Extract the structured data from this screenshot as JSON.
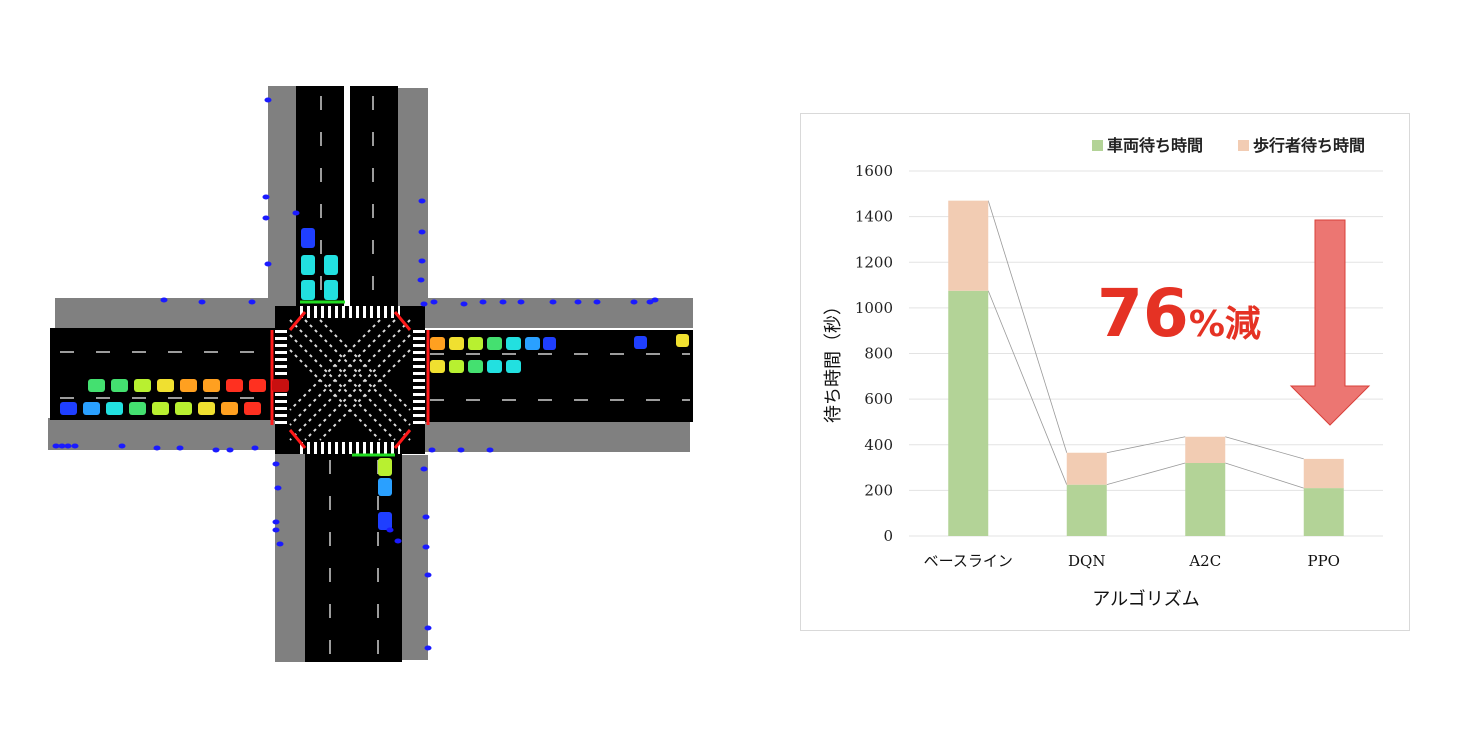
{
  "chart_data": {
    "type": "bar",
    "stacked": true,
    "categories": [
      "ベースライン",
      "DQN",
      "A2C",
      "PPO"
    ],
    "series": [
      {
        "name": "車両待ち時間",
        "color": "#b3d397",
        "values": [
          1075,
          225,
          320,
          210
        ]
      },
      {
        "name": "歩行者待ち時間",
        "color": "#f2ccb3",
        "values": [
          395,
          140,
          115,
          128
        ]
      }
    ],
    "ylabel": "待ち時間（秒）",
    "xlabel": "アルゴリズム",
    "ylim": [
      0,
      1600
    ],
    "yticks": [
      0,
      200,
      400,
      600,
      800,
      1000,
      1200,
      1400,
      1600
    ],
    "grid": true,
    "legend_position": "top-right",
    "annotation": {
      "number": "76",
      "unit": "%減",
      "color": "#e53224",
      "arrow_color": "#ec7672"
    }
  },
  "simulation": {
    "road_color": "#000000",
    "sidewalk_color": "#808080",
    "crosswalk_color": "#ffffff",
    "barrier_color": "#ff1a1a",
    "pedestrian_color": "#1a1aff",
    "signal_green": "#22dd22"
  }
}
